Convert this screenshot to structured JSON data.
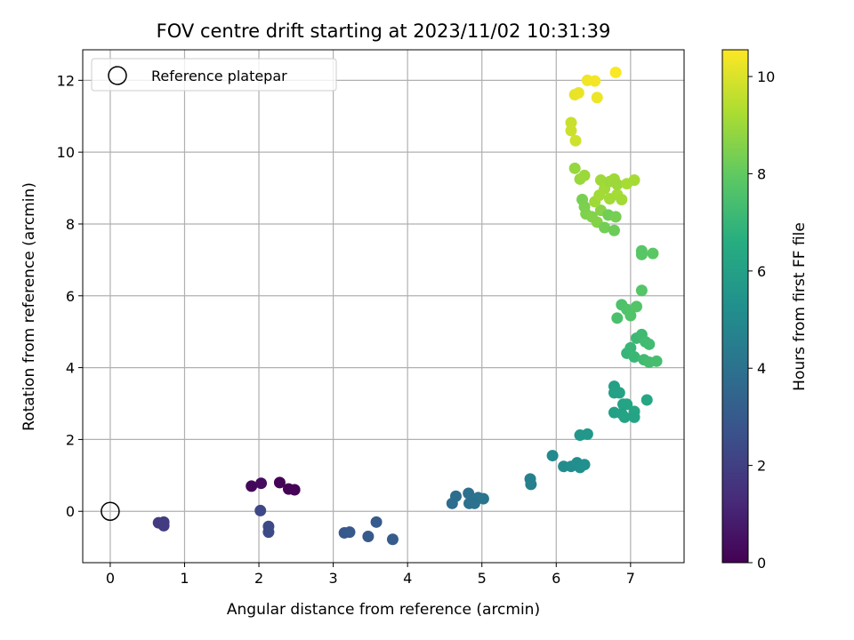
{
  "chart_data": {
    "type": "scatter",
    "title": "FOV centre drift starting at 2023/11/02 10:31:39",
    "xlabel": "Angular distance from reference (arcmin)",
    "ylabel": "Rotation from reference (arcmin)",
    "xlim": [
      -0.37,
      7.72
    ],
    "ylim": [
      -1.43,
      12.85
    ],
    "x_ticks": [
      0,
      1,
      2,
      3,
      4,
      5,
      6,
      7
    ],
    "y_ticks": [
      0,
      2,
      4,
      6,
      8,
      10,
      12
    ],
    "grid": true,
    "legend": {
      "placement": "top-left",
      "entries": [
        {
          "label": "Reference platepar",
          "marker": "open-circle"
        }
      ]
    },
    "reference_point": {
      "label": "Reference platepar",
      "x": 0,
      "y": 0
    },
    "colorbar": {
      "label": "Hours from first FF file",
      "colormap": "viridis",
      "range": [
        0,
        10.55
      ],
      "ticks": [
        0,
        2,
        4,
        6,
        8,
        10
      ]
    },
    "c_label": "hours",
    "points": [
      {
        "x": 1.9,
        "y": 0.7,
        "c": 0.2
      },
      {
        "x": 2.03,
        "y": 0.78,
        "c": 0.3
      },
      {
        "x": 2.28,
        "y": 0.8,
        "c": 0.1
      },
      {
        "x": 2.4,
        "y": 0.62,
        "c": 0.05
      },
      {
        "x": 2.48,
        "y": 0.6,
        "c": 0.1
      },
      {
        "x": 0.65,
        "y": -0.32,
        "c": 1.8
      },
      {
        "x": 0.72,
        "y": -0.3,
        "c": 1.9
      },
      {
        "x": 0.72,
        "y": -0.4,
        "c": 1.85
      },
      {
        "x": 2.02,
        "y": 0.02,
        "c": 2.3
      },
      {
        "x": 2.13,
        "y": -0.42,
        "c": 2.35
      },
      {
        "x": 2.13,
        "y": -0.58,
        "c": 2.4
      },
      {
        "x": 3.15,
        "y": -0.6,
        "c": 2.9
      },
      {
        "x": 3.22,
        "y": -0.58,
        "c": 2.95
      },
      {
        "x": 3.47,
        "y": -0.7,
        "c": 3.0
      },
      {
        "x": 3.58,
        "y": -0.3,
        "c": 3.05
      },
      {
        "x": 3.8,
        "y": -0.78,
        "c": 3.1
      },
      {
        "x": 4.6,
        "y": 0.22,
        "c": 3.8
      },
      {
        "x": 4.65,
        "y": 0.42,
        "c": 3.85
      },
      {
        "x": 4.82,
        "y": 0.5,
        "c": 3.9
      },
      {
        "x": 4.83,
        "y": 0.22,
        "c": 3.95
      },
      {
        "x": 4.9,
        "y": 0.3,
        "c": 4.0
      },
      {
        "x": 4.95,
        "y": 0.38,
        "c": 4.05
      },
      {
        "x": 5.02,
        "y": 0.35,
        "c": 4.1
      },
      {
        "x": 4.9,
        "y": 0.22,
        "c": 4.0
      },
      {
        "x": 5.65,
        "y": 0.9,
        "c": 4.6
      },
      {
        "x": 5.66,
        "y": 0.75,
        "c": 4.65
      },
      {
        "x": 5.95,
        "y": 1.55,
        "c": 5.0
      },
      {
        "x": 6.1,
        "y": 1.25,
        "c": 5.1
      },
      {
        "x": 6.2,
        "y": 1.25,
        "c": 5.15
      },
      {
        "x": 6.28,
        "y": 1.35,
        "c": 5.2
      },
      {
        "x": 6.32,
        "y": 1.22,
        "c": 5.25
      },
      {
        "x": 6.38,
        "y": 1.3,
        "c": 5.3
      },
      {
        "x": 6.32,
        "y": 2.12,
        "c": 5.6
      },
      {
        "x": 6.42,
        "y": 2.15,
        "c": 5.65
      },
      {
        "x": 6.78,
        "y": 3.48,
        "c": 6.0
      },
      {
        "x": 6.78,
        "y": 3.3,
        "c": 6.05
      },
      {
        "x": 6.85,
        "y": 3.3,
        "c": 6.1
      },
      {
        "x": 6.9,
        "y": 2.98,
        "c": 6.15
      },
      {
        "x": 6.95,
        "y": 2.98,
        "c": 6.2
      },
      {
        "x": 7.05,
        "y": 2.78,
        "c": 6.25
      },
      {
        "x": 6.78,
        "y": 2.75,
        "c": 6.0
      },
      {
        "x": 6.88,
        "y": 2.72,
        "c": 6.1
      },
      {
        "x": 6.92,
        "y": 2.62,
        "c": 6.15
      },
      {
        "x": 7.05,
        "y": 2.62,
        "c": 6.2
      },
      {
        "x": 7.22,
        "y": 3.1,
        "c": 6.3
      },
      {
        "x": 6.95,
        "y": 4.4,
        "c": 7.0
      },
      {
        "x": 7.0,
        "y": 4.55,
        "c": 7.05
      },
      {
        "x": 7.05,
        "y": 4.3,
        "c": 7.1
      },
      {
        "x": 7.08,
        "y": 4.82,
        "c": 7.15
      },
      {
        "x": 7.15,
        "y": 4.92,
        "c": 7.2
      },
      {
        "x": 7.18,
        "y": 4.22,
        "c": 7.25
      },
      {
        "x": 7.2,
        "y": 4.72,
        "c": 7.3
      },
      {
        "x": 7.25,
        "y": 4.65,
        "c": 7.3
      },
      {
        "x": 7.25,
        "y": 4.15,
        "c": 7.35
      },
      {
        "x": 7.35,
        "y": 4.18,
        "c": 7.4
      },
      {
        "x": 6.82,
        "y": 5.38,
        "c": 7.5
      },
      {
        "x": 6.88,
        "y": 5.75,
        "c": 7.55
      },
      {
        "x": 6.95,
        "y": 5.62,
        "c": 7.6
      },
      {
        "x": 7.0,
        "y": 5.45,
        "c": 7.65
      },
      {
        "x": 7.08,
        "y": 5.7,
        "c": 7.7
      },
      {
        "x": 7.15,
        "y": 6.15,
        "c": 7.75
      },
      {
        "x": 7.15,
        "y": 7.25,
        "c": 7.8
      },
      {
        "x": 7.15,
        "y": 7.15,
        "c": 7.8
      },
      {
        "x": 7.3,
        "y": 7.18,
        "c": 7.85
      },
      {
        "x": 6.35,
        "y": 8.68,
        "c": 8.4
      },
      {
        "x": 6.38,
        "y": 8.48,
        "c": 8.45
      },
      {
        "x": 6.4,
        "y": 8.28,
        "c": 8.5
      },
      {
        "x": 6.48,
        "y": 8.2,
        "c": 8.55
      },
      {
        "x": 6.55,
        "y": 8.05,
        "c": 8.6
      },
      {
        "x": 6.6,
        "y": 8.38,
        "c": 8.65
      },
      {
        "x": 6.65,
        "y": 7.9,
        "c": 8.3
      },
      {
        "x": 6.7,
        "y": 8.25,
        "c": 8.25
      },
      {
        "x": 6.78,
        "y": 7.82,
        "c": 8.2
      },
      {
        "x": 6.8,
        "y": 8.2,
        "c": 8.35
      },
      {
        "x": 6.25,
        "y": 9.55,
        "c": 8.9
      },
      {
        "x": 6.32,
        "y": 9.25,
        "c": 8.95
      },
      {
        "x": 6.38,
        "y": 9.35,
        "c": 9.0
      },
      {
        "x": 6.52,
        "y": 8.62,
        "c": 9.05
      },
      {
        "x": 6.58,
        "y": 8.8,
        "c": 9.1
      },
      {
        "x": 6.6,
        "y": 9.22,
        "c": 9.05
      },
      {
        "x": 6.65,
        "y": 8.98,
        "c": 9.1
      },
      {
        "x": 6.72,
        "y": 9.18,
        "c": 9.0
      },
      {
        "x": 6.78,
        "y": 9.25,
        "c": 9.05
      },
      {
        "x": 6.82,
        "y": 8.82,
        "c": 9.15
      },
      {
        "x": 6.88,
        "y": 8.68,
        "c": 9.1
      },
      {
        "x": 6.82,
        "y": 9.1,
        "c": 9.0
      },
      {
        "x": 6.95,
        "y": 9.12,
        "c": 9.2
      },
      {
        "x": 7.05,
        "y": 9.22,
        "c": 9.15
      },
      {
        "x": 6.72,
        "y": 8.7,
        "c": 9.1
      },
      {
        "x": 6.2,
        "y": 10.82,
        "c": 9.7
      },
      {
        "x": 6.2,
        "y": 10.6,
        "c": 9.75
      },
      {
        "x": 6.26,
        "y": 10.32,
        "c": 9.8
      },
      {
        "x": 6.25,
        "y": 11.6,
        "c": 10.2
      },
      {
        "x": 6.3,
        "y": 11.65,
        "c": 10.25
      },
      {
        "x": 6.42,
        "y": 12.0,
        "c": 10.35
      },
      {
        "x": 6.52,
        "y": 11.98,
        "c": 10.4
      },
      {
        "x": 6.55,
        "y": 11.52,
        "c": 10.3
      },
      {
        "x": 6.8,
        "y": 12.22,
        "c": 10.5
      }
    ]
  }
}
